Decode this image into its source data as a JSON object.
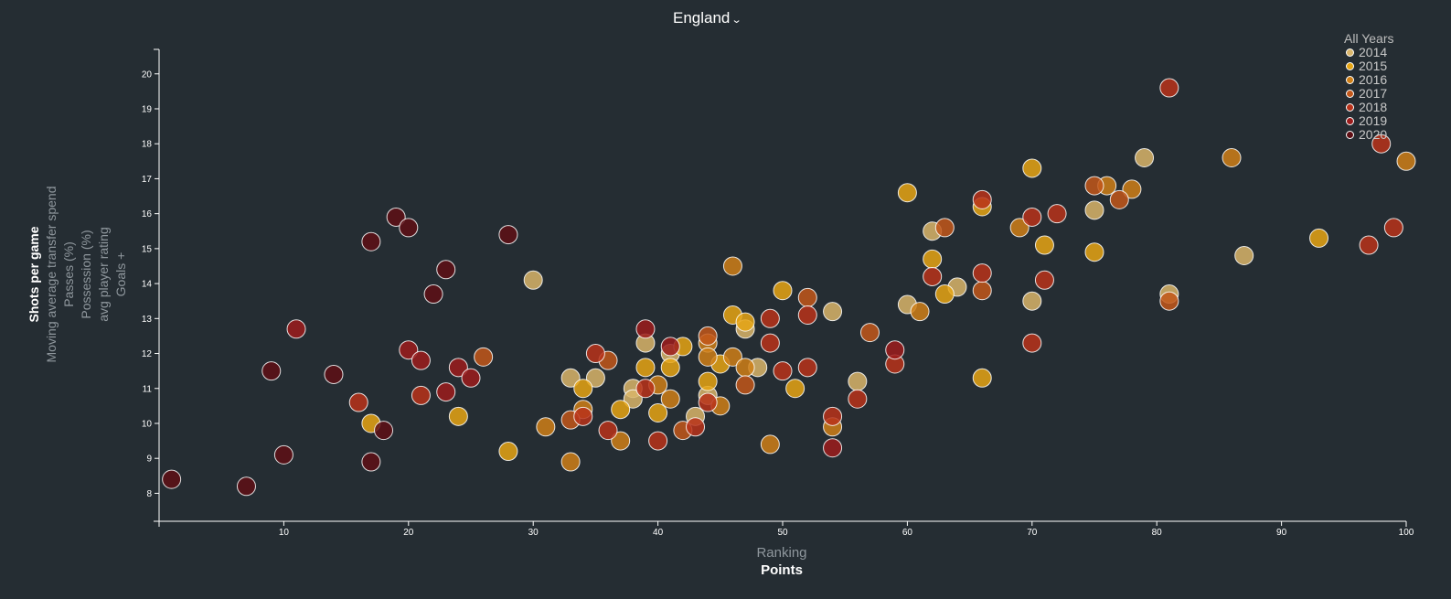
{
  "header": {
    "country": "England"
  },
  "x_axis_options": [
    "Ranking",
    "Points"
  ],
  "y_axis_options": [
    "Shots per game",
    "Moving average transfer spend",
    "Passes (%)",
    "Possession (%)",
    "avg player rating",
    "Goals +"
  ],
  "legend": {
    "title": "All Years",
    "items": [
      {
        "label": "2014",
        "color": "#d9b56a"
      },
      {
        "label": "2015",
        "color": "#e6a514"
      },
      {
        "label": "2016",
        "color": "#cf7f17"
      },
      {
        "label": "2017",
        "color": "#c2571a"
      },
      {
        "label": "2018",
        "color": "#b8321a"
      },
      {
        "label": "2019",
        "color": "#9c1c1c"
      },
      {
        "label": "2020",
        "color": "#5e0f15"
      }
    ]
  },
  "chart_data": {
    "type": "scatter",
    "xlabel": "Points",
    "ylabel": "Shots per game",
    "xlim": [
      0,
      100
    ],
    "ylim": [
      7.2,
      20.7
    ],
    "xticks": [
      10,
      20,
      30,
      40,
      50,
      60,
      70,
      80,
      90,
      100
    ],
    "yticks": [
      8,
      9,
      10,
      11,
      12,
      13,
      14,
      15,
      16,
      17,
      18,
      19,
      20
    ],
    "series": [
      {
        "name": "2014",
        "points": [
          [
            30,
            14.1
          ],
          [
            33,
            11.3
          ],
          [
            35,
            11.3
          ],
          [
            38,
            11.0
          ],
          [
            38,
            10.7
          ],
          [
            39,
            12.3
          ],
          [
            41,
            12.0
          ],
          [
            43,
            10.2
          ],
          [
            44,
            10.8
          ],
          [
            47,
            12.7
          ],
          [
            48,
            11.6
          ],
          [
            54,
            13.2
          ],
          [
            56,
            11.2
          ],
          [
            60,
            13.4
          ],
          [
            62,
            15.5
          ],
          [
            64,
            13.9
          ],
          [
            70,
            13.5
          ],
          [
            75,
            16.1
          ],
          [
            79,
            17.6
          ],
          [
            81,
            13.7
          ],
          [
            87,
            14.8
          ]
        ]
      },
      {
        "name": "2015",
        "points": [
          [
            17,
            10.0
          ],
          [
            24,
            10.2
          ],
          [
            28,
            9.2
          ],
          [
            34,
            11.0
          ],
          [
            37,
            10.4
          ],
          [
            39,
            11.6
          ],
          [
            40,
            10.3
          ],
          [
            41,
            11.6
          ],
          [
            42,
            12.2
          ],
          [
            44,
            11.2
          ],
          [
            45,
            11.7
          ],
          [
            46,
            13.1
          ],
          [
            47,
            12.9
          ],
          [
            50,
            13.8
          ],
          [
            51,
            11.0
          ],
          [
            60,
            16.6
          ],
          [
            62,
            14.7
          ],
          [
            63,
            13.7
          ],
          [
            66,
            16.2
          ],
          [
            66,
            11.3
          ],
          [
            70,
            17.3
          ],
          [
            71,
            15.1
          ],
          [
            75,
            14.9
          ],
          [
            93,
            15.3
          ]
        ]
      },
      {
        "name": "2016",
        "points": [
          [
            31,
            9.9
          ],
          [
            33,
            8.9
          ],
          [
            34,
            10.4
          ],
          [
            37,
            9.5
          ],
          [
            40,
            11.1
          ],
          [
            41,
            10.7
          ],
          [
            44,
            12.3
          ],
          [
            44,
            11.9
          ],
          [
            45,
            10.5
          ],
          [
            46,
            11.9
          ],
          [
            46,
            14.5
          ],
          [
            47,
            11.6
          ],
          [
            49,
            9.4
          ],
          [
            54,
            9.9
          ],
          [
            61,
            13.2
          ],
          [
            69,
            15.6
          ],
          [
            76,
            16.8
          ],
          [
            78,
            16.7
          ],
          [
            86,
            17.6
          ],
          [
            100,
            17.5
          ]
        ]
      },
      {
        "name": "2017",
        "points": [
          [
            26,
            11.9
          ],
          [
            33,
            10.1
          ],
          [
            36,
            11.8
          ],
          [
            42,
            9.8
          ],
          [
            44,
            12.5
          ],
          [
            47,
            11.1
          ],
          [
            52,
            13.6
          ],
          [
            57,
            12.6
          ],
          [
            63,
            15.6
          ],
          [
            66,
            13.8
          ],
          [
            75,
            16.8
          ],
          [
            77,
            16.4
          ],
          [
            81,
            13.5
          ]
        ]
      },
      {
        "name": "2018",
        "points": [
          [
            16,
            10.6
          ],
          [
            21,
            10.8
          ],
          [
            34,
            10.2
          ],
          [
            35,
            12.0
          ],
          [
            36,
            9.8
          ],
          [
            39,
            11.0
          ],
          [
            40,
            9.5
          ],
          [
            43,
            9.9
          ],
          [
            44,
            10.6
          ],
          [
            49,
            12.3
          ],
          [
            49,
            13.0
          ],
          [
            50,
            11.5
          ],
          [
            52,
            11.6
          ],
          [
            52,
            13.1
          ],
          [
            54,
            10.2
          ],
          [
            56,
            10.7
          ],
          [
            59,
            11.7
          ],
          [
            62,
            14.2
          ],
          [
            66,
            16.4
          ],
          [
            66,
            14.3
          ],
          [
            70,
            15.9
          ],
          [
            70,
            12.3
          ],
          [
            71,
            14.1
          ],
          [
            72,
            16.0
          ],
          [
            81,
            19.6
          ],
          [
            97,
            15.1
          ],
          [
            98,
            18.0
          ],
          [
            99,
            15.6
          ]
        ]
      },
      {
        "name": "2019",
        "points": [
          [
            11,
            12.7
          ],
          [
            20,
            12.1
          ],
          [
            21,
            11.8
          ],
          [
            23,
            10.9
          ],
          [
            24,
            11.6
          ],
          [
            25,
            11.3
          ],
          [
            39,
            12.7
          ],
          [
            41,
            12.2
          ],
          [
            54,
            9.3
          ],
          [
            59,
            12.1
          ]
        ]
      },
      {
        "name": "2020",
        "points": [
          [
            1,
            8.4
          ],
          [
            7,
            8.2
          ],
          [
            9,
            11.5
          ],
          [
            10,
            9.1
          ],
          [
            14,
            11.4
          ],
          [
            17,
            15.2
          ],
          [
            17,
            8.9
          ],
          [
            18,
            9.8
          ],
          [
            19,
            15.9
          ],
          [
            20,
            15.6
          ],
          [
            22,
            13.7
          ],
          [
            23,
            14.4
          ],
          [
            28,
            15.4
          ]
        ]
      }
    ]
  }
}
